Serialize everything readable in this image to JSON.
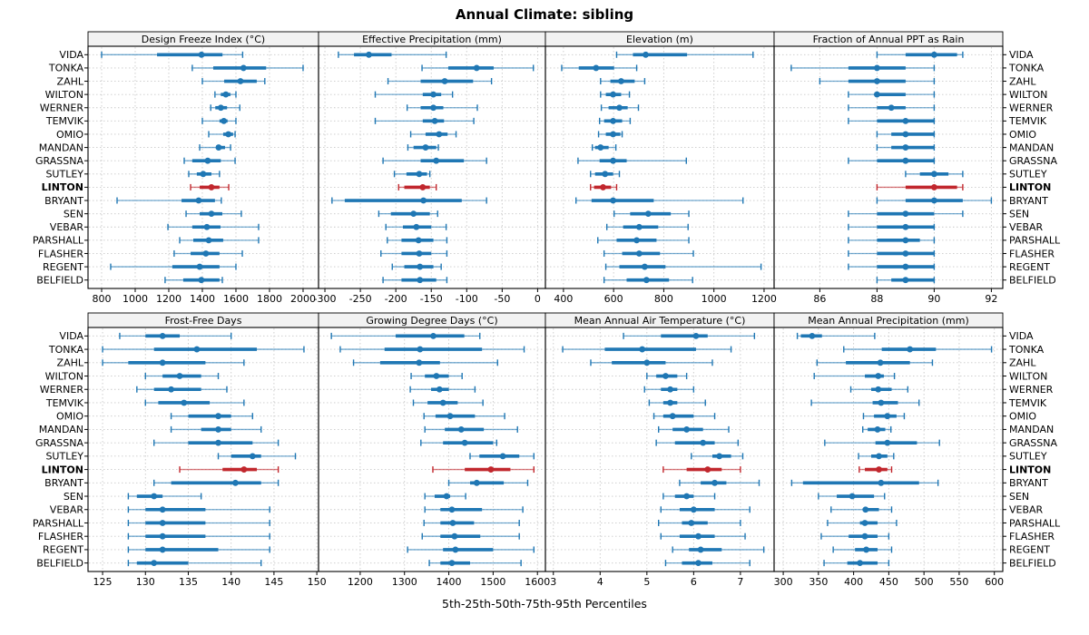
{
  "page": {
    "title": "Annual Climate: sibling",
    "footer": "5th-25th-50th-75th-95th Percentiles"
  },
  "colors": {
    "series": "#1f77b4",
    "highlight": "#c1272d",
    "grid": "#c9c9c9",
    "strip_bg": "#f2f2f2",
    "border": "#000000"
  },
  "stations": [
    "VIDA",
    "TONKA",
    "ZAHL",
    "WILTON",
    "WERNER",
    "TEMVIK",
    "OMIO",
    "MANDAN",
    "GRASSNA",
    "SUTLEY",
    "LINTON",
    "BRYANT",
    "SEN",
    "VEBAR",
    "PARSHALL",
    "FLASHER",
    "REGENT",
    "BELFIELD"
  ],
  "highlight_station": "LINTON",
  "chart_data": {
    "type": "percentile_dotplot",
    "percentiles": [
      5,
      25,
      50,
      75,
      95
    ],
    "panels": [
      {
        "title": "Design Freeze Index (°C)",
        "row": 0,
        "col": 0,
        "xlim": [
          719,
          2092
        ],
        "ticks": [
          800,
          1000,
          1200,
          1400,
          1600,
          1800,
          2000
        ],
        "values": [
          [
            800,
            1130,
            1395,
            1520,
            1640
          ],
          [
            1340,
            1465,
            1645,
            1780,
            2000
          ],
          [
            1400,
            1530,
            1627,
            1724,
            1772
          ],
          [
            1475,
            1510,
            1540,
            1567,
            1600
          ],
          [
            1450,
            1477,
            1510,
            1547,
            1623
          ],
          [
            1400,
            1502,
            1528,
            1550,
            1600
          ],
          [
            1438,
            1524,
            1555,
            1583,
            1595
          ],
          [
            1384,
            1486,
            1497,
            1535,
            1568
          ],
          [
            1292,
            1340,
            1432,
            1510,
            1595
          ],
          [
            1319,
            1367,
            1405,
            1454,
            1502
          ],
          [
            1330,
            1384,
            1454,
            1502,
            1557
          ],
          [
            892,
            1276,
            1378,
            1475,
            1513
          ],
          [
            1303,
            1384,
            1454,
            1519,
            1632
          ],
          [
            1195,
            1340,
            1427,
            1508,
            1735
          ],
          [
            1265,
            1346,
            1438,
            1524,
            1735
          ],
          [
            1232,
            1330,
            1421,
            1502,
            1638
          ],
          [
            854,
            1221,
            1384,
            1502,
            1600
          ],
          [
            1178,
            1286,
            1394,
            1502,
            1519
          ]
        ]
      },
      {
        "title": "Effective Precipitation (mm)",
        "row": 0,
        "col": 1,
        "xlim": [
          -309,
          11
        ],
        "ticks": [
          -300,
          -250,
          -200,
          -150,
          -100,
          -50,
          0
        ],
        "values": [
          [
            -281,
            -259,
            -238,
            -206,
            -129
          ],
          [
            -163,
            -126,
            -86,
            -62,
            -6
          ],
          [
            -211,
            -165,
            -131,
            -91,
            -65
          ],
          [
            -229,
            -162,
            -147,
            -136,
            -120
          ],
          [
            -184,
            -165,
            -147,
            -133,
            -85
          ],
          [
            -229,
            -162,
            -145,
            -132,
            -90
          ],
          [
            -179,
            -158,
            -139,
            -127,
            -115
          ],
          [
            -183,
            -175,
            -158,
            -143,
            -140
          ],
          [
            -218,
            -165,
            -143,
            -104,
            -72
          ],
          [
            -202,
            -185,
            -167,
            -156,
            -152
          ],
          [
            -196,
            -188,
            -162,
            -152,
            -143
          ],
          [
            -290,
            -272,
            -161,
            -107,
            -72
          ],
          [
            -224,
            -207,
            -175,
            -152,
            -141
          ],
          [
            -214,
            -190,
            -171,
            -150,
            -129
          ],
          [
            -212,
            -192,
            -168,
            -147,
            -128
          ],
          [
            -221,
            -192,
            -167,
            -150,
            -128
          ],
          [
            -205,
            -188,
            -166,
            -147,
            -136
          ],
          [
            -218,
            -192,
            -166,
            -143,
            -128
          ]
        ]
      },
      {
        "title": "Elevation (m)",
        "row": 0,
        "col": 2,
        "xlim": [
          328,
          1240
        ],
        "ticks": [
          400,
          600,
          800,
          1000,
          1200
        ],
        "values": [
          [
            612,
            677,
            728,
            893,
            1156
          ],
          [
            393,
            461,
            530,
            602,
            692
          ],
          [
            548,
            587,
            630,
            684,
            724
          ],
          [
            548,
            569,
            598,
            630,
            663
          ],
          [
            551,
            580,
            623,
            656,
            699
          ],
          [
            544,
            562,
            598,
            634,
            666
          ],
          [
            540,
            569,
            598,
            627,
            634
          ],
          [
            515,
            526,
            548,
            580,
            609
          ],
          [
            458,
            544,
            598,
            652,
            890
          ],
          [
            508,
            526,
            566,
            598,
            623
          ],
          [
            508,
            522,
            558,
            590,
            612
          ],
          [
            450,
            512,
            598,
            760,
            1116
          ],
          [
            602,
            666,
            738,
            828,
            900
          ],
          [
            573,
            638,
            702,
            778,
            897
          ],
          [
            537,
            612,
            692,
            771,
            900
          ],
          [
            562,
            634,
            702,
            785,
            918
          ],
          [
            569,
            623,
            724,
            807,
            1188
          ],
          [
            562,
            652,
            731,
            821,
            915
          ]
        ]
      },
      {
        "title": "Fraction of Annual PPT as Rain",
        "row": 0,
        "col": 3,
        "xlim": [
          84.4,
          92.4
        ],
        "ticks": [
          86,
          88,
          90,
          92
        ],
        "values": [
          [
            88,
            89,
            90,
            90.8,
            91
          ],
          [
            85,
            87,
            88,
            89,
            90
          ],
          [
            86,
            87,
            88,
            89,
            90
          ],
          [
            87,
            88,
            88,
            89,
            90
          ],
          [
            87,
            88,
            88.5,
            89,
            90
          ],
          [
            87,
            88,
            89,
            90,
            90
          ],
          [
            88,
            88.5,
            89,
            90,
            90
          ],
          [
            88,
            88.5,
            89,
            90,
            90
          ],
          [
            87,
            88,
            89,
            90,
            90
          ],
          [
            89,
            89.5,
            90,
            90.5,
            91
          ],
          [
            88,
            89,
            90,
            90.8,
            91
          ],
          [
            88,
            89,
            90,
            91,
            92
          ],
          [
            87,
            88,
            89,
            90,
            91
          ],
          [
            87,
            88,
            89,
            90,
            90
          ],
          [
            87,
            88,
            89,
            89.5,
            90
          ],
          [
            87,
            88,
            89,
            90,
            90
          ],
          [
            87,
            88,
            89,
            90,
            90
          ],
          [
            88,
            88.5,
            89,
            90,
            90
          ]
        ]
      },
      {
        "title": "Frost-Free Days",
        "row": 1,
        "col": 0,
        "xlim": [
          123.3,
          150.2
        ],
        "ticks": [
          125,
          130,
          135,
          140,
          145,
          150
        ],
        "values": [
          [
            127,
            130,
            132,
            134,
            140
          ],
          [
            125,
            131,
            136,
            143,
            148.5
          ],
          [
            125,
            128,
            132,
            137,
            141.5
          ],
          [
            130,
            132,
            134,
            136.5,
            138.5
          ],
          [
            129,
            131,
            133,
            136.5,
            139.5
          ],
          [
            130,
            131.5,
            134.5,
            137.5,
            141.5
          ],
          [
            133,
            135,
            138.5,
            140,
            142.5
          ],
          [
            133,
            136.5,
            138.5,
            140,
            143.5
          ],
          [
            131,
            135,
            138.5,
            142.5,
            145.5
          ],
          [
            138.5,
            140,
            142.5,
            143.5,
            147.5
          ],
          [
            134,
            139,
            141.5,
            143,
            145.5
          ],
          [
            131,
            133,
            140.5,
            143.5,
            145.5
          ],
          [
            128,
            129,
            131,
            132,
            136.5
          ],
          [
            128,
            130,
            132,
            137,
            144.5
          ],
          [
            128,
            130,
            132,
            137,
            144.5
          ],
          [
            128,
            130,
            132,
            137,
            144.5
          ],
          [
            128,
            130,
            132,
            138.5,
            144.5
          ],
          [
            128,
            129,
            131,
            135,
            143.5
          ]
        ]
      },
      {
        "title": "Growing Degree Days (°C)",
        "row": 1,
        "col": 1,
        "xlim": [
          1106,
          1618
        ],
        "ticks": [
          1200,
          1300,
          1400,
          1500,
          1600
        ],
        "values": [
          [
            1135,
            1280,
            1365,
            1435,
            1470
          ],
          [
            1155,
            1255,
            1335,
            1475,
            1570
          ],
          [
            1185,
            1245,
            1333,
            1380,
            1510
          ],
          [
            1315,
            1346,
            1372,
            1400,
            1430
          ],
          [
            1313,
            1360,
            1379,
            1400,
            1459
          ],
          [
            1320,
            1352,
            1387,
            1420,
            1477
          ],
          [
            1344,
            1370,
            1403,
            1459,
            1526
          ],
          [
            1346,
            1391,
            1428,
            1479,
            1555
          ],
          [
            1337,
            1387,
            1436,
            1500,
            1508
          ],
          [
            1448,
            1469,
            1522,
            1559,
            1592
          ],
          [
            1364,
            1436,
            1495,
            1539,
            1592
          ],
          [
            1400,
            1448,
            1463,
            1524,
            1578
          ],
          [
            1346,
            1368,
            1395,
            1403,
            1438
          ],
          [
            1346,
            1381,
            1407,
            1475,
            1567
          ],
          [
            1344,
            1381,
            1409,
            1457,
            1559
          ],
          [
            1340,
            1381,
            1413,
            1471,
            1559
          ],
          [
            1307,
            1387,
            1415,
            1500,
            1592
          ],
          [
            1356,
            1381,
            1407,
            1448,
            1563
          ]
        ]
      },
      {
        "title": "Mean Annual Air Temperature (°C)",
        "row": 1,
        "col": 2,
        "xlim": [
          2.83,
          7.72
        ],
        "ticks": [
          3,
          4,
          5,
          6,
          7
        ],
        "values": [
          [
            4.5,
            5.3,
            6.05,
            6.3,
            7.3
          ],
          [
            3.2,
            4.1,
            4.9,
            6.05,
            6.8
          ],
          [
            3.8,
            4.25,
            5.0,
            5.4,
            6.4
          ],
          [
            5.0,
            5.2,
            5.4,
            5.65,
            5.85
          ],
          [
            4.95,
            5.3,
            5.5,
            5.65,
            6.0
          ],
          [
            5.05,
            5.35,
            5.5,
            5.65,
            6.25
          ],
          [
            5.15,
            5.35,
            5.55,
            6.0,
            6.45
          ],
          [
            5.25,
            5.55,
            5.85,
            6.2,
            6.75
          ],
          [
            5.2,
            5.6,
            6.2,
            6.45,
            6.95
          ],
          [
            5.95,
            6.4,
            6.55,
            6.8,
            7.05
          ],
          [
            5.35,
            5.85,
            6.3,
            6.6,
            7.0
          ],
          [
            5.7,
            6.15,
            6.45,
            6.7,
            7.4
          ],
          [
            5.35,
            5.6,
            5.85,
            6.0,
            6.45
          ],
          [
            5.3,
            5.7,
            6.0,
            6.45,
            7.2
          ],
          [
            5.25,
            5.75,
            5.95,
            6.3,
            7.0
          ],
          [
            5.3,
            5.7,
            6.1,
            6.45,
            7.1
          ],
          [
            5.55,
            5.9,
            6.15,
            6.6,
            7.5
          ],
          [
            5.4,
            5.75,
            6.1,
            6.4,
            7.2
          ]
        ]
      },
      {
        "title": "Mean Annual Precipitation (mm)",
        "row": 1,
        "col": 3,
        "xlim": [
          287,
          612
        ],
        "ticks": [
          300,
          350,
          400,
          450,
          500,
          550,
          600
        ],
        "values": [
          [
            320,
            325,
            341,
            355,
            430
          ],
          [
            386,
            440,
            480,
            517,
            596
          ],
          [
            348,
            389,
            438,
            480,
            512
          ],
          [
            344,
            416,
            435,
            443,
            458
          ],
          [
            396,
            425,
            435,
            454,
            477
          ],
          [
            340,
            427,
            439,
            463,
            493
          ],
          [
            414,
            429,
            448,
            461,
            472
          ],
          [
            413,
            420,
            434,
            445,
            453
          ],
          [
            359,
            431,
            448,
            490,
            522
          ],
          [
            407,
            425,
            436,
            448,
            457
          ],
          [
            408,
            416,
            436,
            448,
            454
          ],
          [
            312,
            328,
            439,
            493,
            520
          ],
          [
            350,
            376,
            398,
            429,
            444
          ],
          [
            368,
            413,
            417,
            436,
            454
          ],
          [
            363,
            409,
            416,
            434,
            461
          ],
          [
            354,
            393,
            416,
            434,
            450
          ],
          [
            371,
            402,
            418,
            434,
            454
          ],
          [
            358,
            391,
            409,
            434,
            450
          ]
        ]
      }
    ]
  }
}
